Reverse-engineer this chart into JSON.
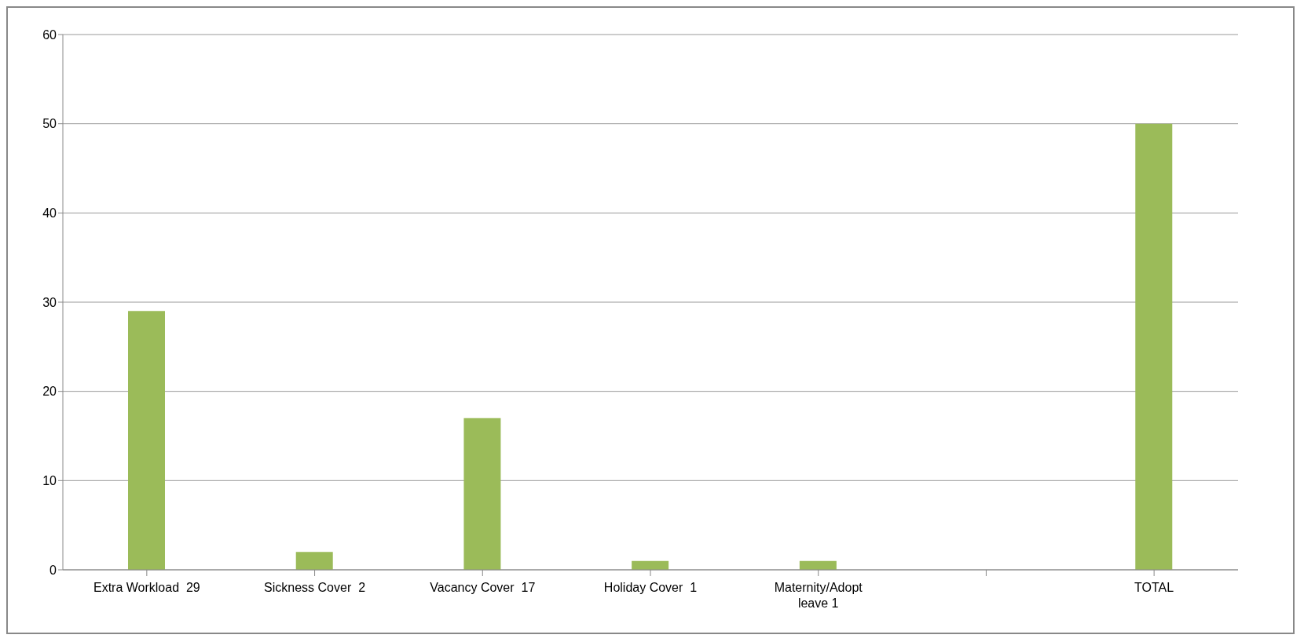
{
  "chart_data": {
    "type": "bar",
    "categories": [
      "Extra Workload  29",
      "Sickness Cover  2",
      "Vacancy Cover  17",
      "Holiday Cover  1",
      "Maternity/Adopt leave 1",
      null,
      "TOTAL"
    ],
    "values": [
      29,
      2,
      17,
      1,
      1,
      null,
      50
    ],
    "color": "#9bbb59",
    "ylim": [
      0,
      60
    ],
    "yticks": [
      0,
      10,
      20,
      30,
      40,
      50,
      60
    ],
    "grid": "y"
  }
}
